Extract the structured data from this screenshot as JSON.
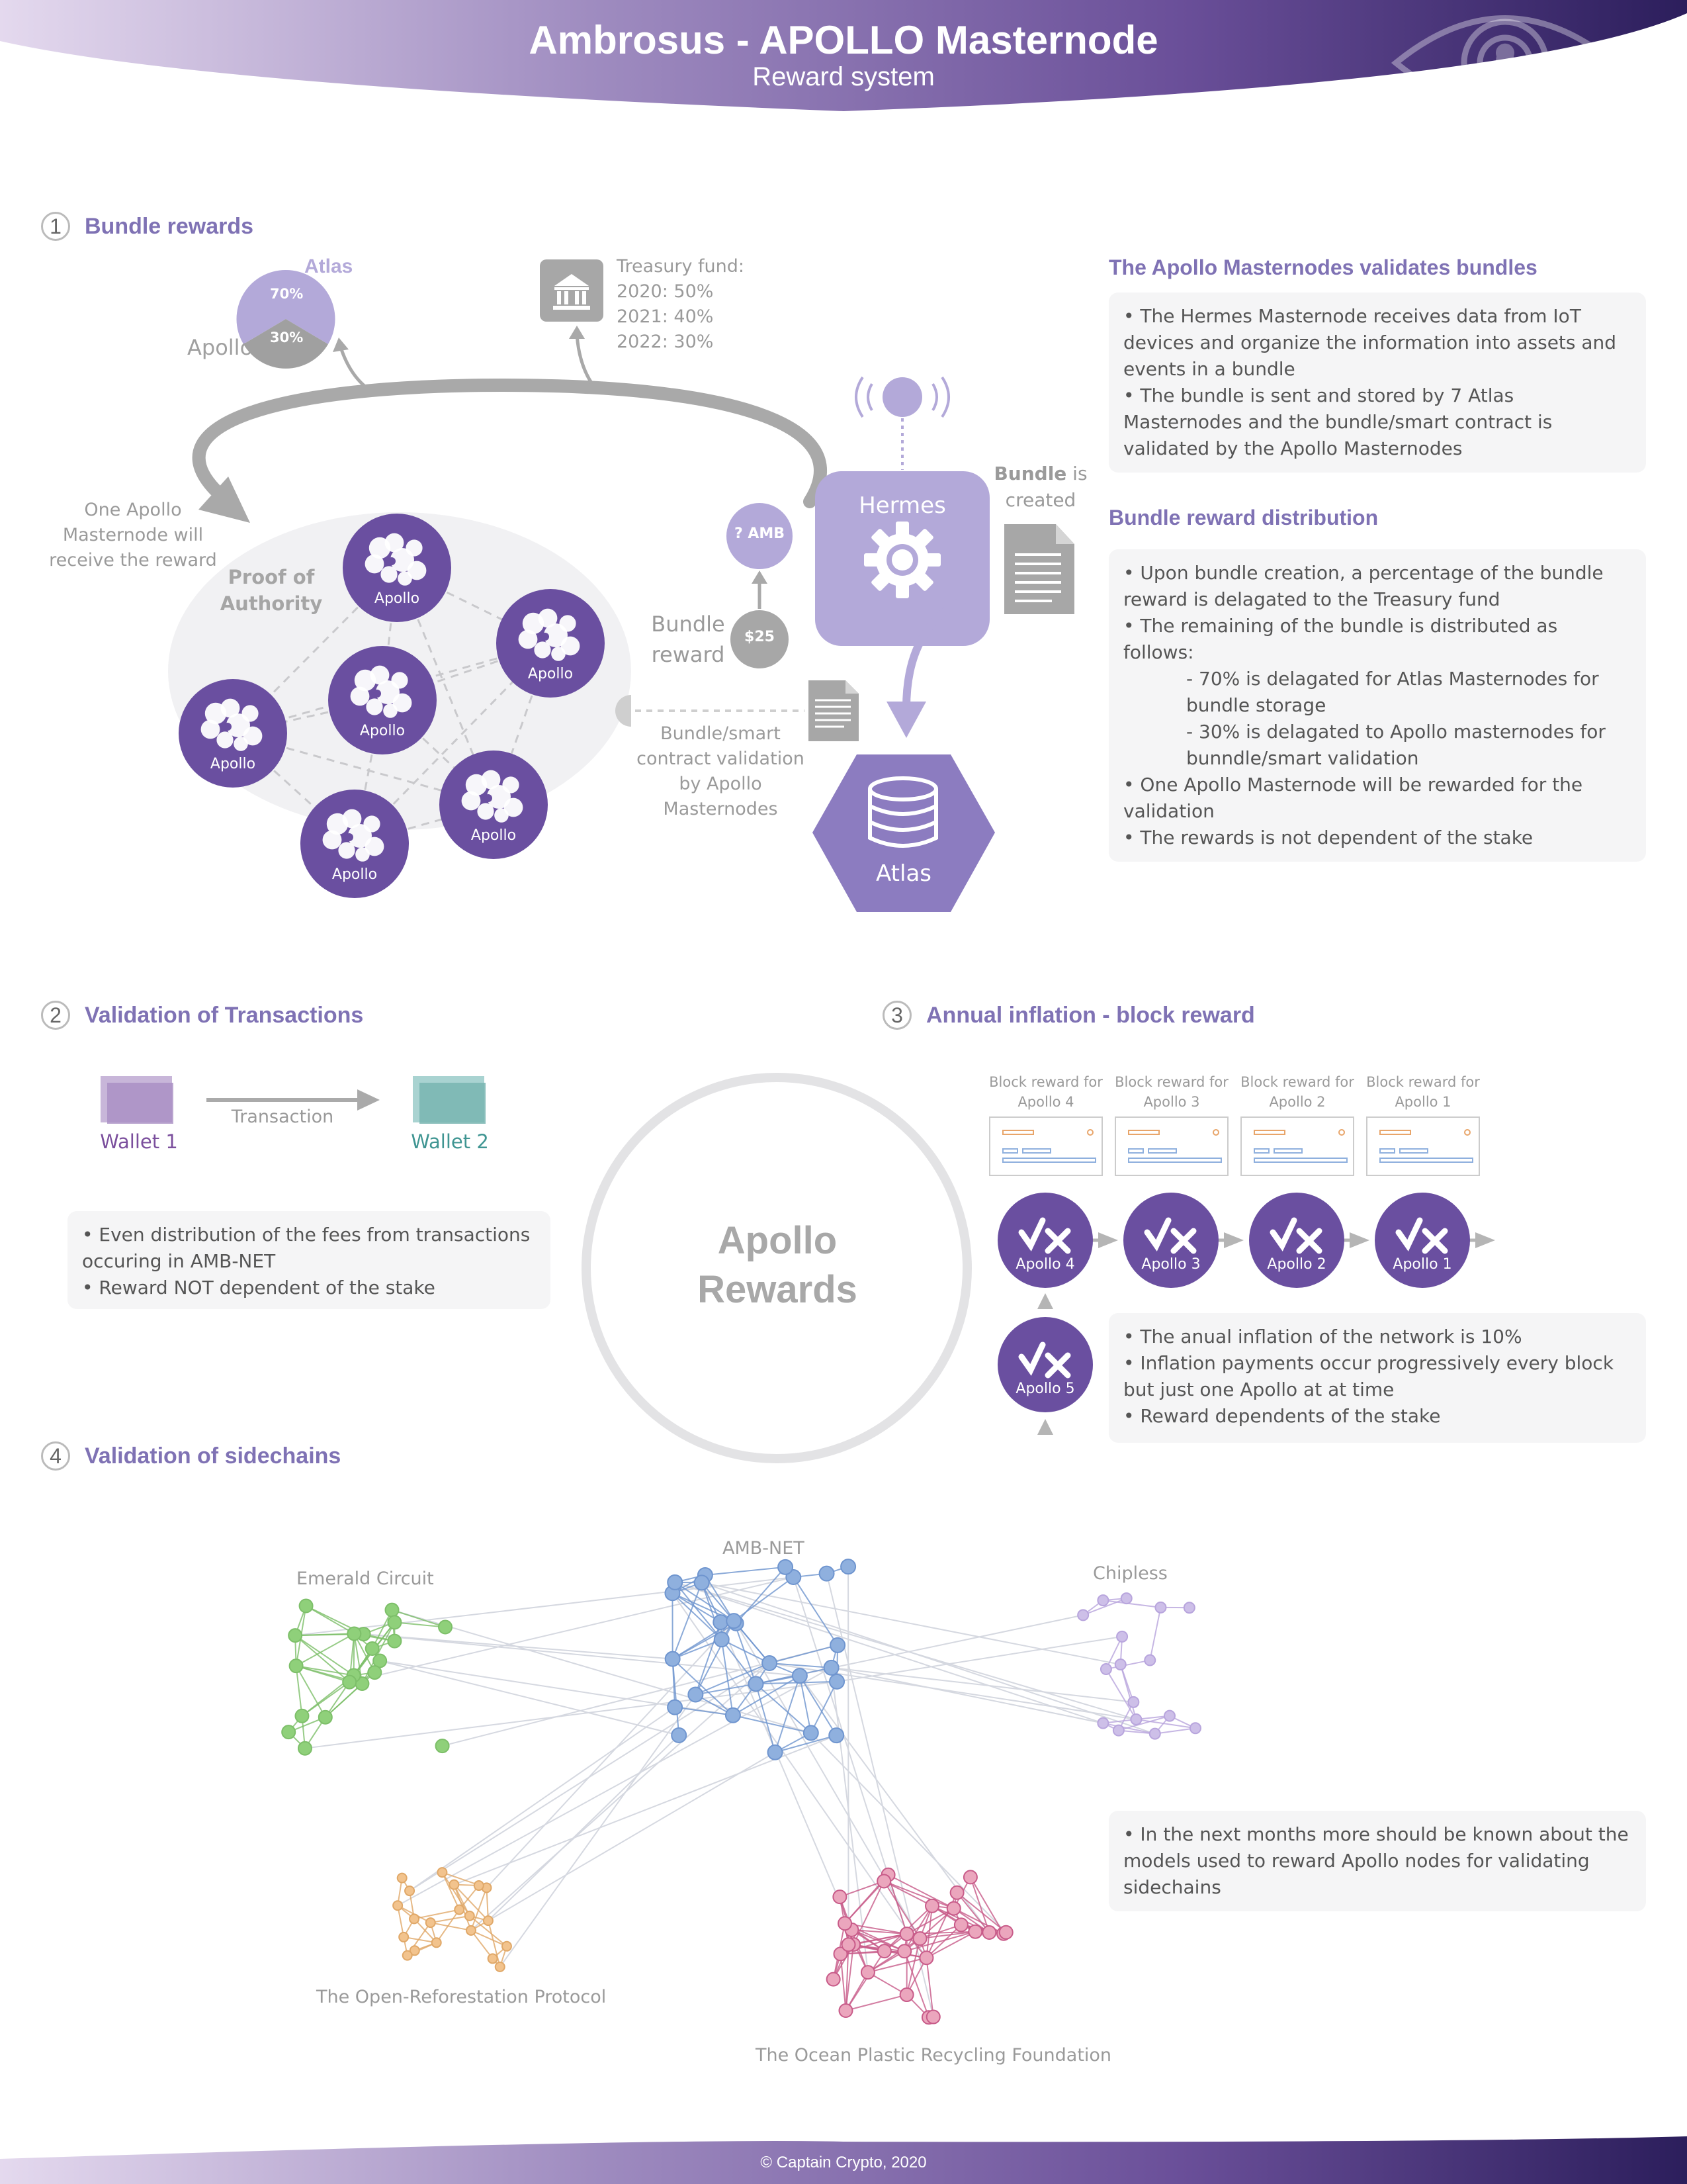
{
  "header": {
    "title": "Ambrosus - APOLLO Masternode",
    "subtitle": "Reward system"
  },
  "sections": {
    "s1": {
      "number": "1",
      "title": "Bundle rewards"
    },
    "s2": {
      "number": "2",
      "title": "Validation of Transactions"
    },
    "s3": {
      "number": "3",
      "title": "Annual inflation - block reward"
    },
    "s4": {
      "number": "4",
      "title": "Validation of sidechains"
    }
  },
  "bundle": {
    "pie": {
      "atlas_label": "Atlas",
      "apollo_label": "Apollo",
      "atlas_pct": "70%",
      "apollo_pct": "30%"
    },
    "treasury": {
      "title": "Treasury fund:",
      "lines": [
        "2020: 50%",
        "2021: 40%",
        "2022: 30%"
      ]
    },
    "one_apollo": "One Apollo Masternode will receive the reward",
    "poa": "Proof of Authority",
    "apollo_node_label": "Apollo",
    "hermes_label": "Hermes",
    "amb_label": "? AMB",
    "usd_label": "$25",
    "bundle_reward": "Bundle reward",
    "bundle_created_bold": "Bundle",
    "bundle_created_rest": " is created",
    "validation_label": "Bundle/smart contract validation by Apollo Masternodes",
    "atlas_label": "Atlas"
  },
  "validates": {
    "heading": "The Apollo Masternodes validates bundles",
    "items": [
      " • The Hermes Masternode receives data from IoT devices and organize the information into assets and events in a bundle",
      " • The bundle is sent and stored by 7 Atlas Masternodes and the bundle/smart contract is validated by the Apollo Masternodes"
    ]
  },
  "distribution": {
    "heading": "Bundle reward distribution",
    "items": [
      " • Upon bundle creation, a percentage of the bundle reward is delagated to the Treasury fund",
      " •  The remaining of the bundle is distributed as follows:"
    ],
    "sub_items": [
      "- 70% is delagated for Atlas Masternodes for bundle storage",
      "- 30% is delagated to Apollo masternodes for bunndle/smart validation"
    ],
    "items2": [
      " • One Apollo Masternode will be rewarded for the validation",
      " • The rewards is not dependent of the stake"
    ]
  },
  "transactions": {
    "wallet1": "Wallet 1",
    "wallet2": "Wallet 2",
    "transaction": "Transaction",
    "items": [
      " • Even distribution of the fees from transactions occuring in AMB-NET",
      " • Reward NOT dependent of the stake"
    ]
  },
  "center": {
    "line1": "Apollo",
    "line2": "Rewards"
  },
  "inflation": {
    "blocks": [
      {
        "line1": "Block reward for",
        "line2": "Apollo 4"
      },
      {
        "line1": "Block reward for",
        "line2": "Apollo 3"
      },
      {
        "line1": "Block reward for",
        "line2": "Apollo 2"
      },
      {
        "line1": "Block reward for",
        "line2": "Apollo 1"
      }
    ],
    "nodes": [
      "Apollo 4",
      "Apollo 3",
      "Apollo 2",
      "Apollo 1"
    ],
    "node5": "Apollo 5",
    "items": [
      " • The anual inflation of the network is 10%",
      " • Inflation payments occur progressively every block but just one Apollo at at time",
      " • Reward dependents of the stake"
    ]
  },
  "sidechains": {
    "networks": {
      "emerald": "Emerald Circuit",
      "ambnet": "AMB-NET",
      "chipless": "Chipless",
      "reforest": "The Open-Reforestation Protocol",
      "ocean": "The Ocean Plastic Recycling Foundation"
    },
    "note": " • In the next months more should be known about the models used to reward Apollo nodes for validating sidechains"
  },
  "footer": "© Captain Crypto, 2020",
  "colors": {
    "purple": "#6a4fa0",
    "lavender": "#b3a9d9",
    "heading": "#7f72b4",
    "green": "#8fd07a",
    "blue": "#8fb0de",
    "violet": "#cdbfe8",
    "orange": "#f2c38d",
    "pink": "#eba6bd"
  }
}
